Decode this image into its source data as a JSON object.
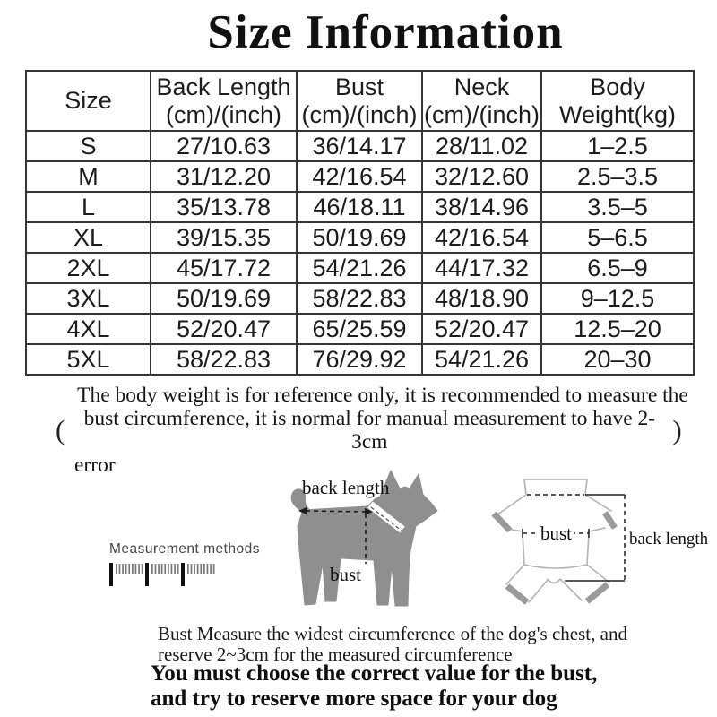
{
  "title": "Size Information",
  "table": {
    "headers": [
      {
        "line1": "Size",
        "line2": ""
      },
      {
        "line1": "Back Length",
        "line2": "(cm)/(inch)"
      },
      {
        "line1": "Bust",
        "line2": "(cm)/(inch)"
      },
      {
        "line1": "Neck",
        "line2": "(cm)/(inch)"
      },
      {
        "line1": "Body",
        "line2": "Weight(kg)"
      }
    ],
    "rows": [
      {
        "size": "S",
        "back_length": "27/10.63",
        "bust": "36/14.17",
        "neck": "28/11.02",
        "weight": "1–2.5"
      },
      {
        "size": "M",
        "back_length": "31/12.20",
        "bust": "42/16.54",
        "neck": "32/12.60",
        "weight": "2.5–3.5"
      },
      {
        "size": "L",
        "back_length": "35/13.78",
        "bust": "46/18.11",
        "neck": "38/14.96",
        "weight": "3.5–5"
      },
      {
        "size": "XL",
        "back_length": "39/15.35",
        "bust": "50/19.69",
        "neck": "42/16.54",
        "weight": "5–6.5"
      },
      {
        "size": "2XL",
        "back_length": "45/17.72",
        "bust": "54/21.26",
        "neck": "44/17.32",
        "weight": "6.5–9"
      },
      {
        "size": "3XL",
        "back_length": "50/19.69",
        "bust": "58/22.83",
        "neck": "48/18.90",
        "weight": "9–12.5"
      },
      {
        "size": "4XL",
        "back_length": "52/20.47",
        "bust": "65/25.59",
        "neck": "52/20.47",
        "weight": "12.5–20"
      },
      {
        "size": "5XL",
        "back_length": "58/22.83",
        "bust": "76/29.92",
        "neck": "54/21.26",
        "weight": "20–30"
      }
    ]
  },
  "note": {
    "open_paren": "(",
    "close_paren": ")",
    "line1": "The body weight is for reference only, it is recommended to measure the",
    "line2": "bust circumference, it is normal for manual measurement to have 2-3cm",
    "line3": "error"
  },
  "measurement": {
    "methods_label": "Measurement methods",
    "side_dog": {
      "back_length_label": "back length",
      "bust_label": "bust"
    },
    "garment": {
      "bust_label": "bust",
      "back_length_label": "back length"
    }
  },
  "footer": {
    "bust_note_line1": "Bust Measure the widest circumference of the dog's chest, and",
    "bust_note_line2": "reserve 2~3cm for the measured circumference",
    "warning_line1": "You must choose the correct value for the bust,",
    "warning_line2": "and try to reserve more space for your dog"
  },
  "colors": {
    "text": "#1b1b1b",
    "table_border": "#353535",
    "dog_gray": "#8f8f8f",
    "garment_outline": "#b3b3b3",
    "cuff_gray": "#9a9a9a",
    "measure_line": "#222222"
  }
}
